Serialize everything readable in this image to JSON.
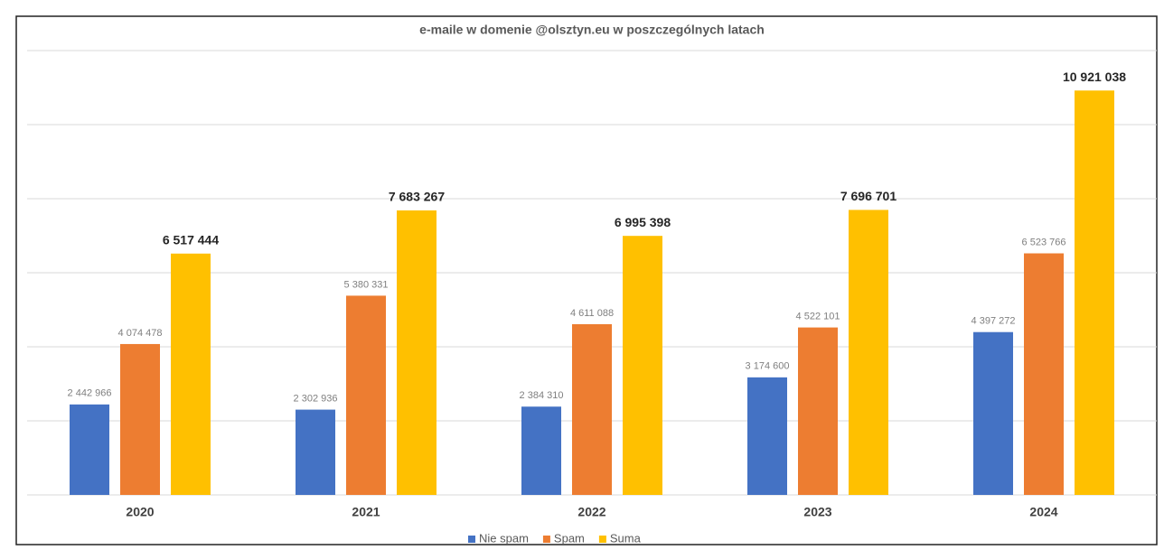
{
  "chart_data": {
    "type": "bar",
    "title": "e-maile w domenie @olsztyn.eu w poszczególnych latach",
    "categories": [
      "2020",
      "2021",
      "2022",
      "2023",
      "2024"
    ],
    "series": [
      {
        "name": "Nie spam",
        "color": "#4472c4",
        "values": [
          2442966,
          2302936,
          2384310,
          3174600,
          4397272
        ],
        "value_labels": [
          "2 442 966",
          "2 302 936",
          "2 384 310",
          "3 174 600",
          "4 397 272"
        ]
      },
      {
        "name": "Spam",
        "color": "#ed7d31",
        "values": [
          4074478,
          5380331,
          4611088,
          4522101,
          6523766
        ],
        "value_labels": [
          "4 074 478",
          "5 380 331",
          "4 611 088",
          "4 522 101",
          "6 523 766"
        ]
      },
      {
        "name": "Suma",
        "color": "#ffc000",
        "values": [
          6517444,
          7683267,
          6995398,
          7696701,
          10921038
        ],
        "value_labels": [
          "6 517 444",
          "7 683 267",
          "6 995 398",
          "7 696 701",
          "10 921 038"
        ]
      }
    ],
    "ylim": [
      0,
      12000000
    ],
    "yticks": [
      0,
      2000000,
      4000000,
      6000000,
      8000000,
      10000000,
      12000000
    ],
    "grid": true,
    "legend": "bottom"
  }
}
